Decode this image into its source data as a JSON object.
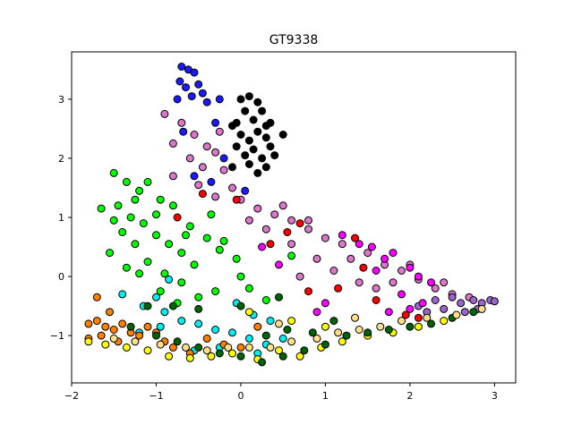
{
  "chart_data": {
    "type": "scatter",
    "title": "GT9338",
    "xlabel": "",
    "ylabel": "",
    "xlim": [
      -2.0,
      3.25
    ],
    "ylim": [
      -1.8,
      3.8
    ],
    "x_ticks": [
      -2,
      -1,
      0,
      1,
      2,
      3
    ],
    "x_tick_labels": [
      "−2",
      "−1",
      "0",
      "1",
      "2",
      "3"
    ],
    "y_ticks": [
      -1,
      0,
      1,
      2,
      3
    ],
    "y_tick_labels": [
      "−1",
      "0",
      "1",
      "2",
      "3"
    ],
    "grid": false,
    "legend": "none",
    "marker_edge_color": "#000000",
    "series": [
      {
        "color": "#1a1aff",
        "points": [
          [
            -0.7,
            3.55
          ],
          [
            -0.62,
            3.5
          ],
          [
            -0.55,
            3.45
          ],
          [
            -0.72,
            3.3
          ],
          [
            -0.65,
            3.2
          ],
          [
            -0.5,
            3.25
          ],
          [
            -0.45,
            3.1
          ],
          [
            -0.58,
            3.05
          ],
          [
            -0.75,
            3.0
          ],
          [
            -0.4,
            2.95
          ],
          [
            -0.3,
            2.6
          ],
          [
            -0.2,
            2.0
          ],
          [
            -0.55,
            1.7
          ],
          [
            -0.35,
            1.6
          ],
          [
            0.05,
            1.45
          ],
          [
            -0.25,
            3.0
          ],
          [
            -0.68,
            2.45
          ]
        ]
      },
      {
        "color": "#000000",
        "points": [
          [
            0.0,
            3.0
          ],
          [
            0.1,
            3.05
          ],
          [
            0.2,
            2.95
          ],
          [
            0.05,
            2.8
          ],
          [
            0.25,
            2.8
          ],
          [
            -0.05,
            2.6
          ],
          [
            0.15,
            2.65
          ],
          [
            0.3,
            2.55
          ],
          [
            0.0,
            2.4
          ],
          [
            0.2,
            2.45
          ],
          [
            0.1,
            2.3
          ],
          [
            0.3,
            2.35
          ],
          [
            -0.05,
            2.2
          ],
          [
            0.15,
            2.15
          ],
          [
            0.35,
            2.2
          ],
          [
            0.05,
            2.05
          ],
          [
            0.25,
            2.0
          ],
          [
            0.1,
            1.9
          ],
          [
            0.3,
            1.85
          ],
          [
            -0.1,
            1.85
          ],
          [
            0.5,
            2.4
          ],
          [
            0.35,
            2.6
          ],
          [
            -0.1,
            2.55
          ],
          [
            0.2,
            1.75
          ],
          [
            0.4,
            2.05
          ]
        ]
      },
      {
        "color": "#dd77cc",
        "points": [
          [
            -0.9,
            2.75
          ],
          [
            -0.7,
            2.6
          ],
          [
            -0.55,
            2.4
          ],
          [
            -0.4,
            2.2
          ],
          [
            -0.3,
            2.1
          ],
          [
            -0.6,
            2.0
          ],
          [
            -0.45,
            1.85
          ],
          [
            -0.2,
            1.8
          ],
          [
            -0.8,
            1.7
          ],
          [
            -0.5,
            1.55
          ],
          [
            -0.3,
            1.35
          ],
          [
            0.0,
            1.3
          ],
          [
            0.2,
            1.15
          ],
          [
            0.4,
            1.05
          ],
          [
            0.6,
            0.95
          ],
          [
            0.8,
            0.8
          ],
          [
            1.0,
            0.65
          ],
          [
            1.2,
            0.55
          ],
          [
            1.5,
            0.4
          ],
          [
            1.7,
            0.2
          ],
          [
            1.9,
            0.1
          ],
          [
            2.1,
            -0.05
          ],
          [
            2.3,
            -0.2
          ],
          [
            2.5,
            -0.3
          ],
          [
            2.7,
            -0.35
          ],
          [
            0.3,
            0.8
          ],
          [
            0.6,
            0.55
          ],
          [
            0.9,
            0.3
          ],
          [
            1.1,
            0.1
          ],
          [
            1.4,
            -0.1
          ],
          [
            1.6,
            -0.2
          ],
          [
            0.5,
            1.2
          ],
          [
            0.8,
            0.95
          ],
          [
            1.3,
            0.3
          ],
          [
            1.8,
            -0.1
          ],
          [
            2.0,
            0.2
          ],
          [
            0.1,
            0.95
          ],
          [
            -0.1,
            1.5
          ],
          [
            2.4,
            -0.1
          ],
          [
            0.7,
            0.0
          ],
          [
            -0.25,
            2.45
          ],
          [
            -0.8,
            2.25
          ]
        ]
      },
      {
        "color": "#9966cc",
        "points": [
          [
            2.3,
            -0.4
          ],
          [
            2.5,
            -0.35
          ],
          [
            2.6,
            -0.45
          ],
          [
            2.75,
            -0.4
          ],
          [
            2.85,
            -0.45
          ],
          [
            2.95,
            -0.4
          ],
          [
            3.0,
            -0.42
          ],
          [
            2.4,
            -0.55
          ],
          [
            2.2,
            -0.6
          ],
          [
            2.65,
            -0.6
          ],
          [
            2.1,
            -0.5
          ],
          [
            2.8,
            -0.55
          ]
        ]
      },
      {
        "color": "#ff00ff",
        "points": [
          [
            1.4,
            0.55
          ],
          [
            1.55,
            0.5
          ],
          [
            1.7,
            0.3
          ],
          [
            1.8,
            0.4
          ],
          [
            2.0,
            0.15
          ],
          [
            2.1,
            0.0
          ],
          [
            2.25,
            -0.1
          ],
          [
            1.6,
            0.1
          ],
          [
            1.2,
            0.7
          ],
          [
            0.45,
            0.2
          ],
          [
            0.25,
            0.5
          ],
          [
            1.9,
            -0.3
          ],
          [
            2.0,
            -0.55
          ],
          [
            1.75,
            -0.6
          ],
          [
            1.0,
            -0.45
          ],
          [
            0.9,
            -0.6
          ],
          [
            2.15,
            -0.45
          ]
        ]
      },
      {
        "color": "#ff0000",
        "points": [
          [
            1.35,
            0.65
          ],
          [
            0.7,
            0.9
          ],
          [
            0.35,
            0.55
          ],
          [
            0.55,
            0.75
          ],
          [
            -0.75,
            1.0
          ],
          [
            -0.45,
            1.4
          ],
          [
            -0.05,
            1.3
          ],
          [
            1.15,
            -0.2
          ],
          [
            1.45,
            0.15
          ],
          [
            1.95,
            -0.65
          ],
          [
            2.1,
            -0.7
          ],
          [
            0.8,
            -0.25
          ],
          [
            1.6,
            -0.4
          ]
        ]
      },
      {
        "color": "#00ff00",
        "points": [
          [
            -1.5,
            1.75
          ],
          [
            -1.35,
            1.6
          ],
          [
            -1.2,
            1.45
          ],
          [
            -1.1,
            1.6
          ],
          [
            -0.95,
            1.3
          ],
          [
            -0.8,
            1.2
          ],
          [
            -1.45,
            1.2
          ],
          [
            -1.3,
            1.0
          ],
          [
            -1.15,
            0.9
          ],
          [
            -1.0,
            0.7
          ],
          [
            -0.85,
            0.55
          ],
          [
            -0.7,
            0.4
          ],
          [
            -1.4,
            0.75
          ],
          [
            -1.25,
            0.55
          ],
          [
            -1.55,
            0.4
          ],
          [
            -1.35,
            0.15
          ],
          [
            -1.1,
            0.25
          ],
          [
            -0.9,
            0.05
          ],
          [
            -0.7,
            -0.1
          ],
          [
            -0.55,
            0.2
          ],
          [
            -0.4,
            0.65
          ],
          [
            -0.25,
            0.45
          ],
          [
            -1.65,
            1.15
          ],
          [
            -1.5,
            0.95
          ],
          [
            -0.6,
            0.85
          ],
          [
            -0.35,
            1.05
          ],
          [
            -0.2,
            0.6
          ],
          [
            -0.05,
            0.3
          ],
          [
            0.1,
            -0.2
          ],
          [
            0.3,
            -0.4
          ],
          [
            0.6,
            0.35
          ],
          [
            -1.2,
            0.05
          ],
          [
            -0.95,
            -0.25
          ],
          [
            -0.75,
            -0.45
          ],
          [
            -0.5,
            -0.35
          ],
          [
            -1.0,
            1.05
          ],
          [
            -0.65,
            0.7
          ],
          [
            -1.25,
            1.3
          ],
          [
            -0.3,
            -0.25
          ],
          [
            0.0,
            0.0
          ]
        ]
      },
      {
        "color": "#00eeee",
        "points": [
          [
            -1.4,
            -0.3
          ],
          [
            -1.15,
            -0.5
          ],
          [
            -0.9,
            -0.6
          ],
          [
            -0.7,
            -0.75
          ],
          [
            -0.5,
            -0.8
          ],
          [
            -0.3,
            -0.9
          ],
          [
            -0.1,
            -0.95
          ],
          [
            0.1,
            -1.05
          ],
          [
            0.3,
            -1.15
          ],
          [
            0.5,
            -1.05
          ],
          [
            -1.0,
            -0.35
          ],
          [
            -0.85,
            -0.05
          ],
          [
            -1.2,
            -0.95
          ],
          [
            -0.55,
            -1.25
          ],
          [
            -0.05,
            -0.45
          ],
          [
            0.15,
            -0.65
          ],
          [
            0.35,
            -0.75
          ],
          [
            -0.95,
            -0.85
          ],
          [
            -0.25,
            -1.2
          ],
          [
            0.2,
            -1.3
          ]
        ]
      },
      {
        "color": "#ff8000",
        "points": [
          [
            -1.8,
            -0.8
          ],
          [
            -1.7,
            -0.75
          ],
          [
            -1.6,
            -0.85
          ],
          [
            -1.5,
            -0.9
          ],
          [
            -1.4,
            -0.8
          ],
          [
            -1.3,
            -0.95
          ],
          [
            -1.2,
            -1.0
          ],
          [
            -1.1,
            -0.85
          ],
          [
            -1.0,
            -0.95
          ],
          [
            -1.7,
            -0.35
          ],
          [
            -1.55,
            -0.6
          ],
          [
            -1.65,
            -1.0
          ],
          [
            -0.9,
            -1.1
          ],
          [
            -0.8,
            -1.2
          ],
          [
            -0.6,
            -1.3
          ],
          [
            -0.4,
            -1.05
          ],
          [
            -0.2,
            -1.15
          ],
          [
            0.0,
            -1.2
          ],
          [
            0.2,
            -0.85
          ],
          [
            -1.8,
            -1.05
          ],
          [
            -1.45,
            -1.1
          ]
        ]
      },
      {
        "color": "#ffff00",
        "points": [
          [
            -1.8,
            -1.1
          ],
          [
            -1.6,
            -1.15
          ],
          [
            -1.35,
            -1.2
          ],
          [
            -1.1,
            -1.25
          ],
          [
            -0.85,
            -1.35
          ],
          [
            -0.6,
            -1.38
          ],
          [
            -0.35,
            -1.35
          ],
          [
            -0.1,
            -1.3
          ],
          [
            0.2,
            -1.4
          ],
          [
            0.45,
            -1.25
          ],
          [
            0.7,
            -1.35
          ],
          [
            0.95,
            -1.2
          ],
          [
            1.2,
            -1.1
          ],
          [
            1.5,
            -1.0
          ],
          [
            1.8,
            -0.95
          ],
          [
            2.1,
            -0.85
          ],
          [
            2.4,
            -0.75
          ],
          [
            0.1,
            -0.6
          ],
          [
            0.6,
            -0.75
          ],
          [
            1.0,
            -0.85
          ]
        ]
      },
      {
        "color": "#006400",
        "points": [
          [
            -1.3,
            -0.85
          ],
          [
            -1.0,
            -1.0
          ],
          [
            -0.75,
            -1.1
          ],
          [
            -0.5,
            -1.2
          ],
          [
            -0.25,
            -1.3
          ],
          [
            0.0,
            -1.35
          ],
          [
            0.25,
            -1.45
          ],
          [
            0.5,
            -1.35
          ],
          [
            0.75,
            -1.25
          ],
          [
            1.0,
            -1.15
          ],
          [
            1.25,
            -1.0
          ],
          [
            1.5,
            -0.95
          ],
          [
            1.75,
            -0.9
          ],
          [
            2.0,
            -0.85
          ],
          [
            2.25,
            -0.8
          ],
          [
            2.5,
            -0.7
          ],
          [
            2.75,
            -0.6
          ],
          [
            0.3,
            -1.0
          ],
          [
            0.55,
            -0.9
          ],
          [
            0.85,
            -0.95
          ],
          [
            1.1,
            -0.75
          ],
          [
            -0.8,
            -0.5
          ],
          [
            -0.5,
            -0.55
          ],
          [
            -1.1,
            -0.5
          ],
          [
            0.0,
            -0.5
          ],
          [
            0.45,
            -0.35
          ]
        ]
      },
      {
        "color": "#ffe08a",
        "points": [
          [
            -1.5,
            -1.05
          ],
          [
            -1.25,
            -1.1
          ],
          [
            -0.95,
            -1.15
          ],
          [
            -0.65,
            -1.2
          ],
          [
            -0.4,
            -1.25
          ],
          [
            -0.15,
            -1.2
          ],
          [
            0.1,
            -1.2
          ],
          [
            0.35,
            -1.2
          ],
          [
            0.6,
            -1.1
          ],
          [
            0.9,
            -1.05
          ],
          [
            1.15,
            -0.95
          ],
          [
            1.4,
            -0.9
          ],
          [
            1.65,
            -0.85
          ],
          [
            1.9,
            -0.75
          ],
          [
            2.2,
            -0.7
          ],
          [
            2.55,
            -0.65
          ],
          [
            2.85,
            -0.55
          ],
          [
            0.45,
            -0.8
          ],
          [
            1.35,
            -0.7
          ]
        ]
      }
    ]
  }
}
